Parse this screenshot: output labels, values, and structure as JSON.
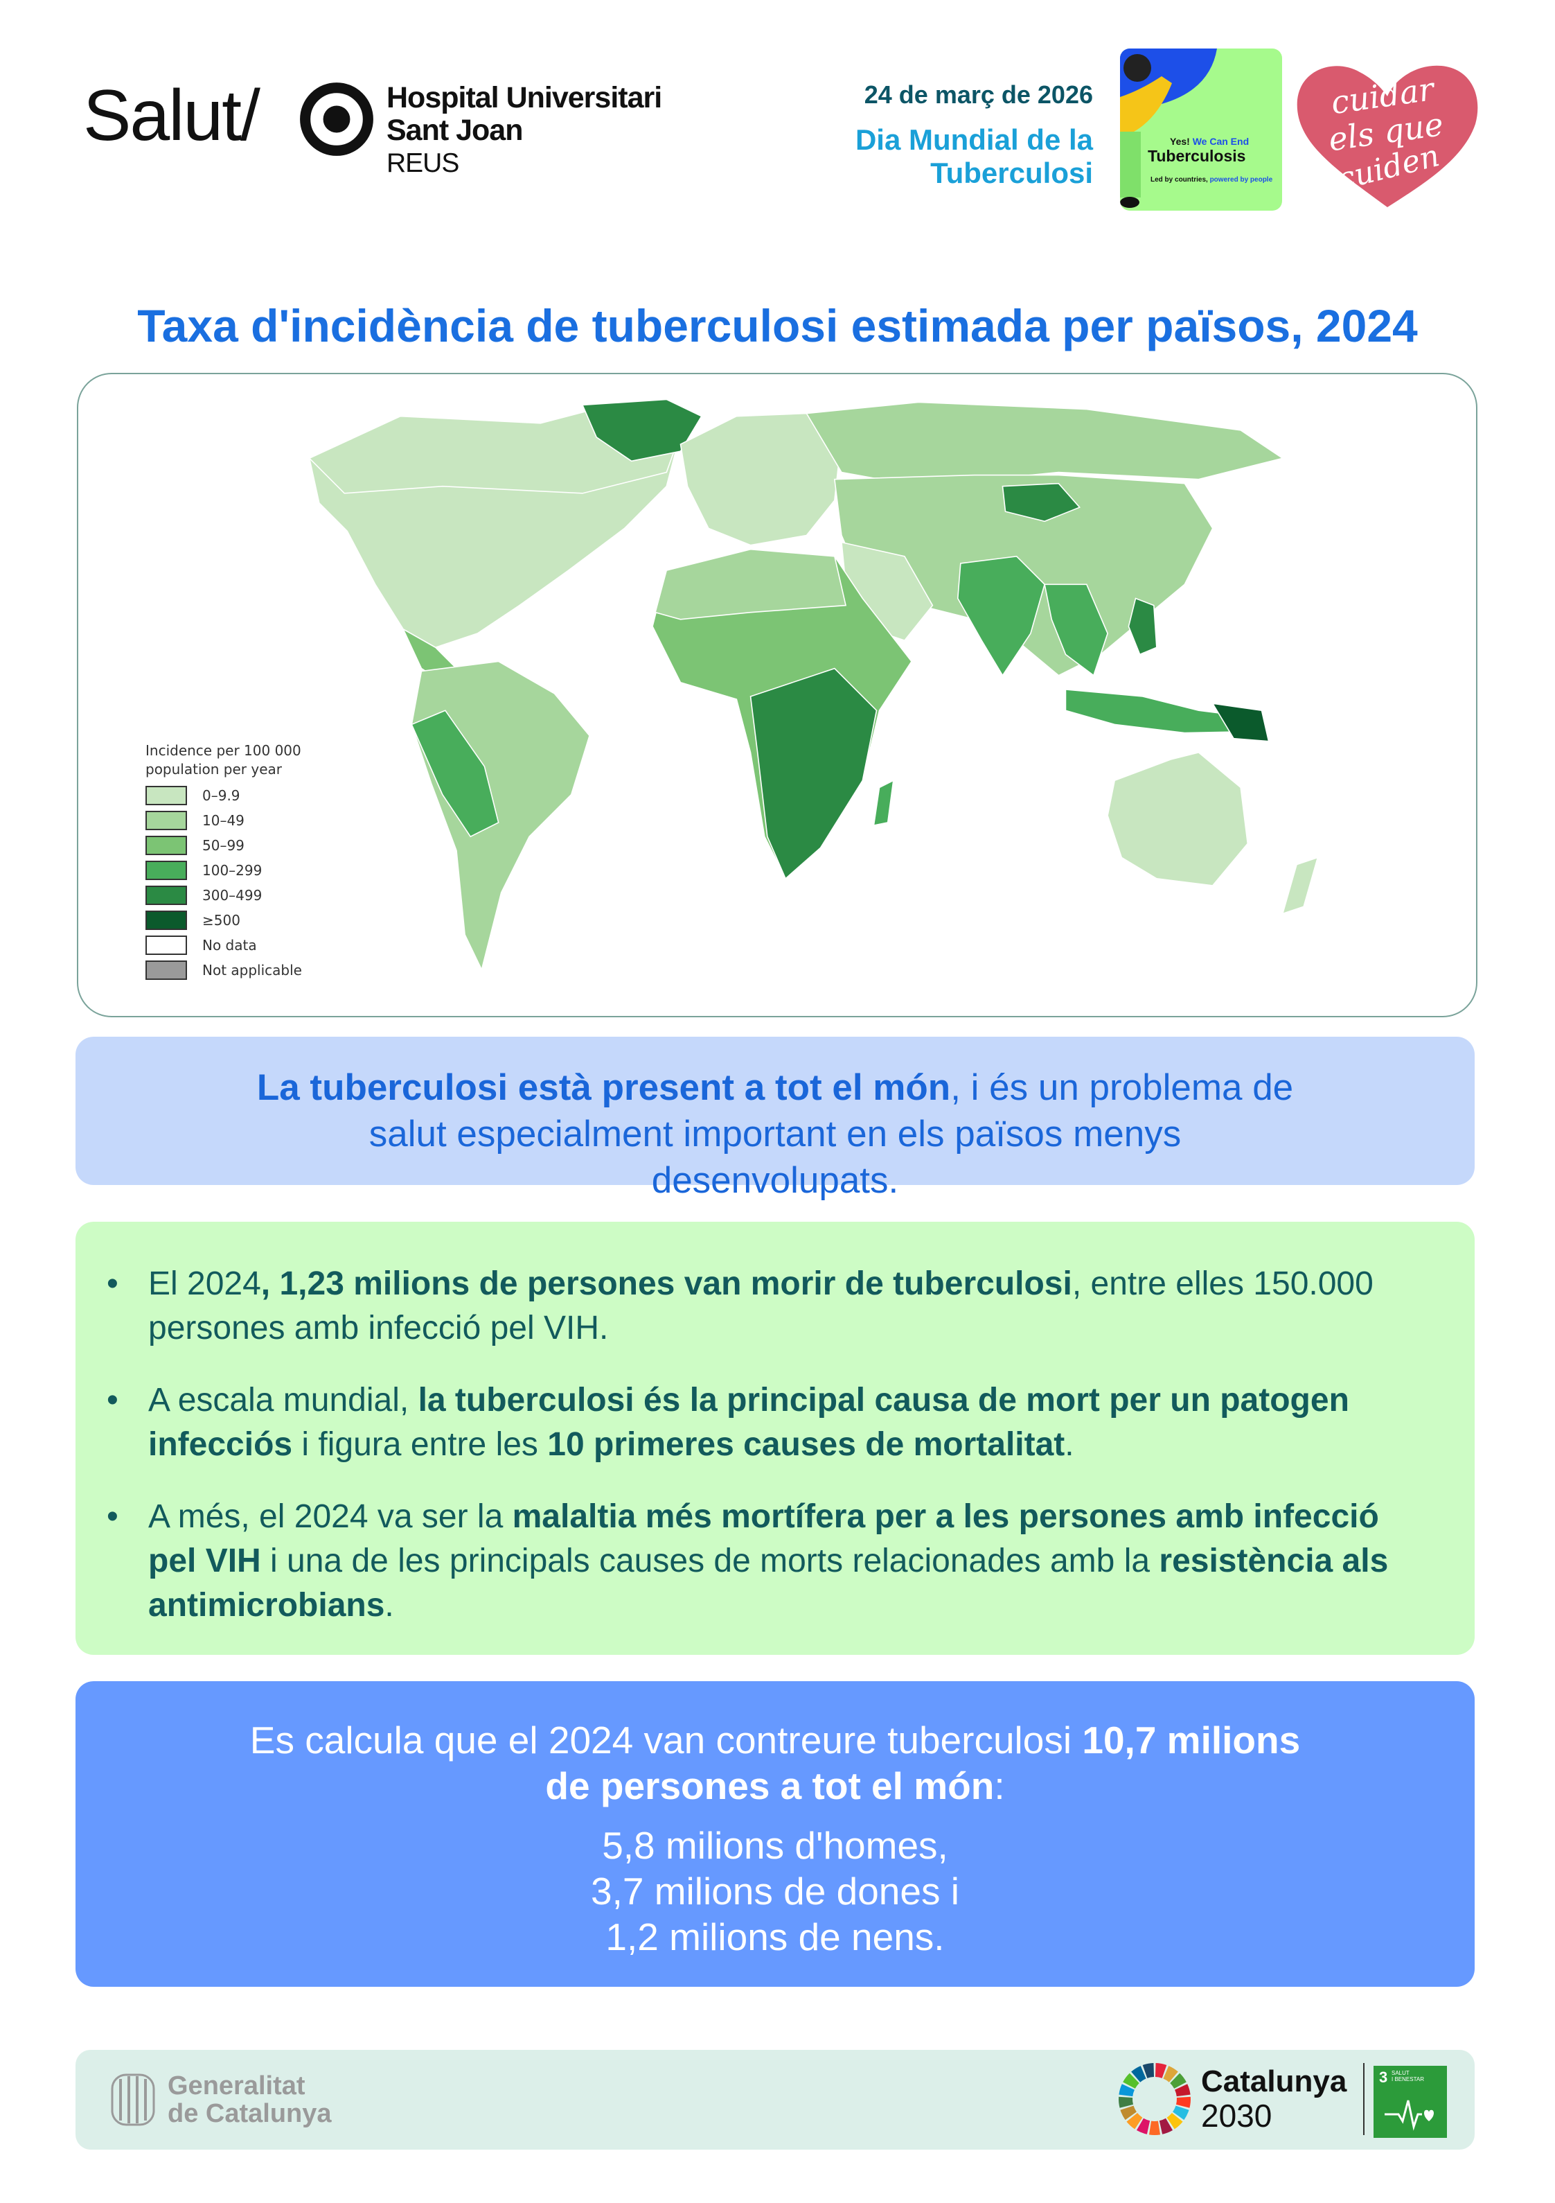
{
  "header": {
    "salut_logo": "Salut/",
    "hospital": {
      "line1": "Hospital Universitari",
      "line2": "Sant Joan",
      "line3": "REUS"
    },
    "date": "24 de març de 2026",
    "event_line1": "Dia Mundial de la",
    "event_line2": "Tuberculosi",
    "campaign": {
      "yes": "Yes!",
      "we_can_end": "We Can End",
      "tb": "Tuberculosis",
      "led": "Led by countries,",
      "powered": "powered by people"
    },
    "heart_logo": "cuidar els que cuiden"
  },
  "title": "Taxa d'incidència de tuberculosi estimada per països, 2024",
  "map": {
    "legend_title_1": "Incidence per 100 000",
    "legend_title_2": "population per year",
    "legend": [
      {
        "label": "0–9.9",
        "color": "#c8e6c0"
      },
      {
        "label": "10–49",
        "color": "#a6d69c"
      },
      {
        "label": "50–99",
        "color": "#7cc474"
      },
      {
        "label": "100–299",
        "color": "#48ad5b"
      },
      {
        "label": "300–499",
        "color": "#2b8a44"
      },
      {
        "label": "≥500",
        "color": "#0b5a2c"
      },
      {
        "label": "No data",
        "color": "#ffffff"
      },
      {
        "label": "Not applicable",
        "color": "#9a9a9a"
      }
    ]
  },
  "box1": [
    {
      "text": "La tuberculosi està present a tot el món",
      "bold": true
    },
    {
      "text": ", i és un problema de salut especialment important en els països menys desenvolupats.",
      "bold": false
    }
  ],
  "bullets": [
    [
      {
        "text": "El 2024",
        "bold": false
      },
      {
        "text": ", 1,23 milions de persones van morir de tuberculosi",
        "bold": true
      },
      {
        "text": ", entre elles 150.000 persones amb infecció pel VIH.",
        "bold": false
      }
    ],
    [
      {
        "text": "A escala mundial, ",
        "bold": false
      },
      {
        "text": "la tuberculosi és la principal causa de mort per un patogen infecciós",
        "bold": true
      },
      {
        "text": " i figura entre les ",
        "bold": false
      },
      {
        "text": "10 primeres causes de mortalitat",
        "bold": true
      },
      {
        "text": ".",
        "bold": false
      }
    ],
    [
      {
        "text": "A més, el 2024 va ser la ",
        "bold": false
      },
      {
        "text": "malaltia més mortífera per a les persones amb infecció pel VIH",
        "bold": true
      },
      {
        "text": " i una de les principals causes de morts relacionades amb la ",
        "bold": false
      },
      {
        "text": "resistència als antimicrobians",
        "bold": true
      },
      {
        "text": ".",
        "bold": false
      }
    ]
  ],
  "box3": {
    "lead": [
      {
        "text": "Es calcula que el 2024 van contreure tuberculosi ",
        "bold": false
      },
      {
        "text": "10,7 milions de persones a tot el món",
        "bold": true
      },
      {
        "text": ":",
        "bold": false
      }
    ],
    "line1": "5,8 milions d'homes,",
    "line2": "3,7 milions de dones i",
    "line3": "1,2 milions de nens."
  },
  "footer": {
    "generalitat_1": "Generalitat",
    "generalitat_2": "de Catalunya",
    "catalunya": "Catalunya",
    "year": "2030",
    "sdg_number": "3",
    "sdg_label_1": "SALUT",
    "sdg_label_2": "I BENESTAR"
  }
}
